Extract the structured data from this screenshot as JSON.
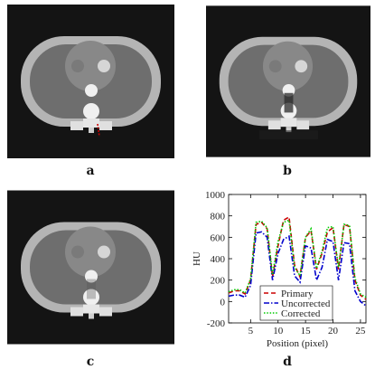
{
  "panels": [
    {
      "label": "a"
    },
    {
      "label": "b"
    },
    {
      "label": "c"
    },
    {
      "label": "d"
    }
  ],
  "colors": {
    "primary": "#cc0000",
    "uncorrected": "#0000cc",
    "corrected": "#00cc00",
    "ct_background": "#141414",
    "ct_shell": "#b4b4b4",
    "ct_tissue": "#6e6e6e",
    "ct_bright": "#f0f0f0"
  },
  "chart_data": {
    "type": "line",
    "xlabel": "Position (pixel)",
    "ylabel": "HU",
    "xlim": [
      1,
      26
    ],
    "ylim": [
      -200,
      1000
    ],
    "xticks": [
      5,
      10,
      15,
      20,
      25
    ],
    "yticks": [
      -200,
      0,
      200,
      400,
      600,
      800,
      1000
    ],
    "legend_position": "bottom-center",
    "x": [
      1,
      2,
      3,
      4,
      5,
      6,
      7,
      8,
      9,
      10,
      11,
      12,
      13,
      14,
      15,
      16,
      17,
      18,
      19,
      20,
      21,
      22,
      23,
      24,
      25,
      26
    ],
    "series": [
      {
        "name": "Primary",
        "style": "dashed",
        "values": [
          80,
          100,
          100,
          70,
          200,
          720,
          740,
          680,
          230,
          520,
          760,
          790,
          340,
          230,
          600,
          660,
          300,
          450,
          650,
          690,
          300,
          720,
          700,
          200,
          60,
          20
        ]
      },
      {
        "name": "Uncorrected",
        "style": "dashdot",
        "values": [
          50,
          60,
          60,
          40,
          150,
          640,
          650,
          600,
          200,
          450,
          580,
          610,
          240,
          180,
          520,
          500,
          200,
          320,
          580,
          560,
          200,
          550,
          540,
          100,
          0,
          -40
        ]
      },
      {
        "name": "Corrected",
        "style": "dotted",
        "values": [
          90,
          110,
          110,
          80,
          210,
          740,
          750,
          690,
          250,
          560,
          740,
          760,
          320,
          240,
          600,
          680,
          310,
          470,
          690,
          700,
          320,
          720,
          710,
          220,
          70,
          40
        ]
      }
    ]
  }
}
